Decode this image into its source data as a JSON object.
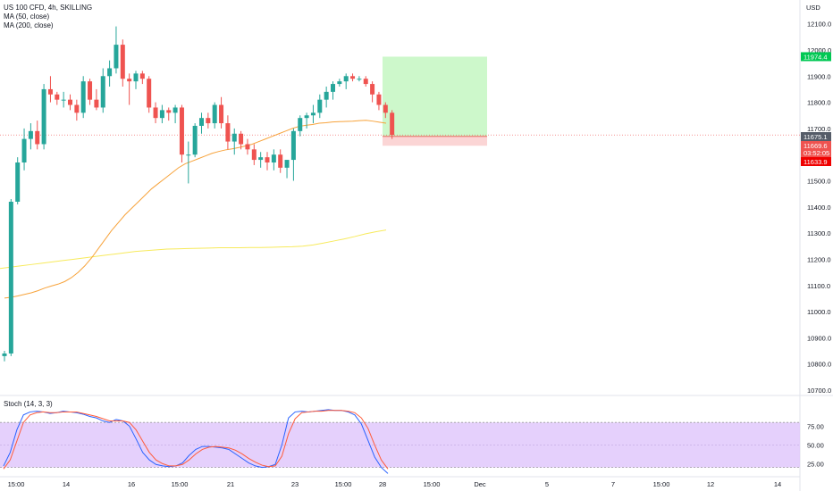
{
  "legend": {
    "symbol": "US 100 CFD, 4h, SKILLING",
    "ma50": "MA (50, close)",
    "ma200": "MA (200, close)",
    "stoch": "Stoch (14, 3, 3)"
  },
  "colors": {
    "up": "#26a69a",
    "down": "#ef5350",
    "ma50": "#f7a33b",
    "ma200": "#f7ea5c",
    "stoch_k": "#2962ff",
    "stoch_d": "#ff5b3a",
    "stoch_band": "#e1c8fb",
    "target_zone": "#c8f7c5",
    "stop_zone": "#fbd0d0"
  },
  "chart_data": [
    {
      "type": "candlestick",
      "currency": "USD",
      "ylim": [
        10700,
        12150
      ],
      "y_ticks": [
        "12100.0",
        "12000.0",
        "11900.0",
        "11800.0",
        "11700.0",
        "11600.0",
        "11500.0",
        "11400.0",
        "11300.0",
        "11200.0",
        "11100.0",
        "11000.0",
        "10900.0",
        "10800.0",
        "10700.0"
      ],
      "x_ticks": [
        "15:00",
        "14",
        "16",
        "15:00",
        "21",
        "23",
        "15:00",
        "28",
        "15:00",
        "Dec",
        "5",
        "7",
        "15:00",
        "12",
        "14"
      ],
      "candles": [
        [
          10830,
          10850,
          10810,
          10840
        ],
        [
          10840,
          11430,
          10830,
          11420
        ],
        [
          11420,
          11590,
          11410,
          11570
        ],
        [
          11570,
          11700,
          11540,
          11660
        ],
        [
          11660,
          11720,
          11620,
          11690
        ],
        [
          11690,
          11730,
          11620,
          11640
        ],
        [
          11640,
          11870,
          11620,
          11850
        ],
        [
          11850,
          11900,
          11800,
          11830
        ],
        [
          11830,
          11840,
          11790,
          11810
        ],
        [
          11810,
          11840,
          11780,
          11810
        ],
        [
          11810,
          11830,
          11770,
          11790
        ],
        [
          11790,
          11810,
          11730,
          11760
        ],
        [
          11760,
          11900,
          11740,
          11880
        ],
        [
          11880,
          11890,
          11790,
          11810
        ],
        [
          11810,
          11850,
          11770,
          11780
        ],
        [
          11780,
          11930,
          11760,
          11900
        ],
        [
          11900,
          11960,
          11860,
          11930
        ],
        [
          11930,
          12090,
          11910,
          12020
        ],
        [
          12020,
          12040,
          11860,
          11890
        ],
        [
          11890,
          11910,
          11790,
          11880
        ],
        [
          11880,
          11920,
          11850,
          11910
        ],
        [
          11910,
          11920,
          11870,
          11890
        ],
        [
          11890,
          11900,
          11760,
          11780
        ],
        [
          11780,
          11800,
          11720,
          11740
        ],
        [
          11740,
          11790,
          11720,
          11770
        ],
        [
          11770,
          11780,
          11730,
          11760
        ],
        [
          11760,
          11790,
          11720,
          11780
        ],
        [
          11780,
          11790,
          11570,
          11600
        ],
        [
          11600,
          11650,
          11490,
          11600
        ],
        [
          11600,
          11720,
          11590,
          11710
        ],
        [
          11710,
          11760,
          11680,
          11740
        ],
        [
          11740,
          11760,
          11700,
          11720
        ],
        [
          11720,
          11800,
          11700,
          11790
        ],
        [
          11790,
          11820,
          11700,
          11720
        ],
        [
          11720,
          11750,
          11620,
          11650
        ],
        [
          11650,
          11700,
          11600,
          11680
        ],
        [
          11680,
          11690,
          11620,
          11640
        ],
        [
          11640,
          11660,
          11600,
          11620
        ],
        [
          11620,
          11640,
          11560,
          11580
        ],
        [
          11580,
          11610,
          11550,
          11590
        ],
        [
          11590,
          11610,
          11540,
          11570
        ],
        [
          11570,
          11620,
          11540,
          11600
        ],
        [
          11600,
          11620,
          11530,
          11550
        ],
        [
          11550,
          11570,
          11510,
          11580
        ],
        [
          11580,
          11700,
          11500,
          11690
        ],
        [
          11690,
          11750,
          11670,
          11740
        ],
        [
          11740,
          11760,
          11700,
          11750
        ],
        [
          11750,
          11790,
          11720,
          11760
        ],
        [
          11760,
          11830,
          11740,
          11810
        ],
        [
          11810,
          11860,
          11780,
          11840
        ],
        [
          11840,
          11880,
          11810,
          11870
        ],
        [
          11870,
          11890,
          11860,
          11880
        ],
        [
          11880,
          11910,
          11850,
          11900
        ],
        [
          11900,
          11910,
          11880,
          11890
        ],
        [
          11890,
          11900,
          11880,
          11890
        ],
        [
          11890,
          11900,
          11860,
          11870
        ],
        [
          11870,
          11880,
          11800,
          11830
        ],
        [
          11830,
          11840,
          11770,
          11790
        ],
        [
          11790,
          11800,
          11740,
          11760
        ],
        [
          11760,
          11770,
          11660,
          11675
        ]
      ],
      "ma50": [
        11052,
        11055,
        11060,
        11066,
        11072,
        11080,
        11090,
        11098,
        11105,
        11115,
        11130,
        11150,
        11175,
        11205,
        11240,
        11275,
        11310,
        11340,
        11370,
        11395,
        11420,
        11445,
        11470,
        11490,
        11510,
        11530,
        11550,
        11565,
        11575,
        11585,
        11595,
        11605,
        11612,
        11618,
        11622,
        11627,
        11633,
        11640,
        11650,
        11660,
        11670,
        11680,
        11690,
        11700,
        11708,
        11712,
        11715,
        11720,
        11722,
        11725,
        11726,
        11727,
        11728,
        11730,
        11731,
        11728,
        11724,
        11720
      ],
      "ma200": [
        11165,
        11170,
        11175,
        11180,
        11185,
        11190,
        11195,
        11200,
        11205,
        11210,
        11215,
        11220,
        11225,
        11230,
        11233,
        11236,
        11239,
        11240,
        11241,
        11242,
        11243,
        11244,
        11244,
        11244,
        11245,
        11245,
        11246,
        11247,
        11248,
        11250,
        11255,
        11262,
        11270,
        11278,
        11287,
        11297,
        11305,
        11312
      ],
      "current_price": "11675.1",
      "bid_price": "11669.6",
      "countdown": "03:52:05",
      "stop_price": "11633.9",
      "target_price": "11974.4",
      "position": {
        "entry": 11669.6,
        "target": 11974.4,
        "stop": 11633.9
      }
    },
    {
      "type": "line",
      "title": "Stoch (14, 3, 3)",
      "ylim": [
        0,
        100
      ],
      "y_ticks": [
        "75.00",
        "50.00",
        "25.00"
      ],
      "band": [
        20,
        80
      ],
      "series": [
        {
          "name": "%K",
          "values": [
            22,
            40,
            70,
            90,
            94,
            95,
            94,
            92,
            93,
            95,
            94,
            93,
            91,
            88,
            86,
            82,
            80,
            84,
            82,
            75,
            58,
            40,
            30,
            24,
            22,
            21,
            22,
            26,
            36,
            44,
            48,
            48,
            47,
            46,
            44,
            38,
            32,
            26,
            22,
            20,
            21,
            24,
            50,
            86,
            94,
            95,
            94,
            95,
            96,
            97,
            96,
            96,
            94,
            90,
            78,
            56,
            34,
            20,
            12
          ]
        },
        {
          "name": "%D",
          "values": [
            18,
            30,
            55,
            80,
            90,
            93,
            94,
            93,
            93,
            94,
            94,
            94,
            92,
            90,
            88,
            85,
            82,
            82,
            82,
            80,
            70,
            55,
            40,
            30,
            25,
            22,
            22,
            24,
            30,
            38,
            44,
            47,
            48,
            47,
            46,
            43,
            38,
            32,
            27,
            23,
            21,
            22,
            35,
            65,
            85,
            93,
            94,
            95,
            95,
            96,
            96,
            96,
            95,
            93,
            86,
            72,
            50,
            30,
            18
          ]
        }
      ]
    }
  ]
}
